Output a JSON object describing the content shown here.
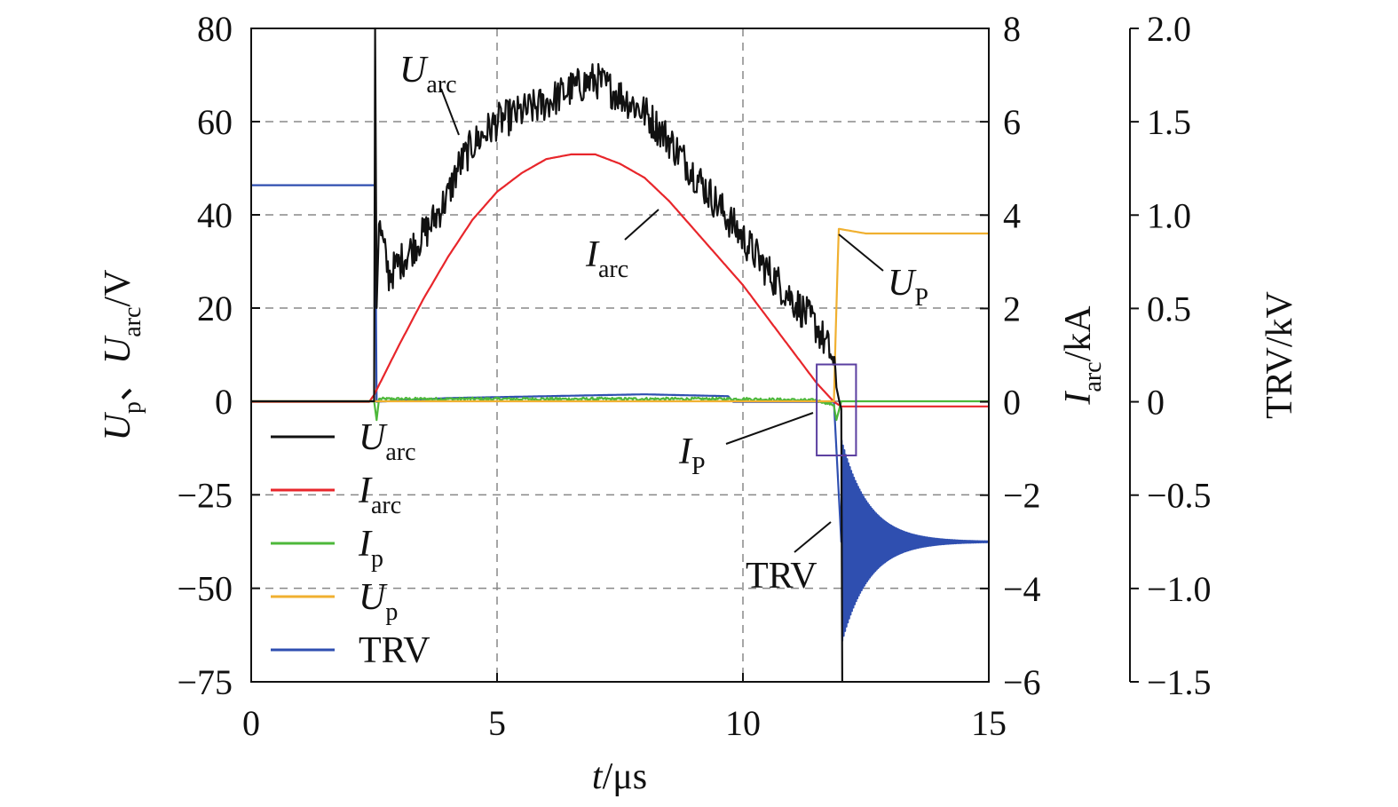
{
  "chart_data": {
    "type": "line",
    "xlabel": {
      "var": "t",
      "unit": "/μs"
    },
    "ylabel_left": {
      "part1": "U",
      "sub1": "p",
      "sep": "、",
      "part2": "U",
      "sub2": "arc",
      "unit": "/V"
    },
    "ylabel_mid": {
      "part": "I",
      "sub": "arc",
      "unit": "/kA"
    },
    "ylabel_right": "TRV/kV",
    "xlim": [
      0,
      15
    ],
    "xticks": [
      "0",
      "5",
      "10",
      "15"
    ],
    "y_left_ticks": [
      "80",
      "60",
      "40",
      "20",
      "0",
      "−25",
      "−50",
      "−75"
    ],
    "y_mid_ticks": [
      "8",
      "6",
      "4",
      "2",
      "0",
      "−2",
      "−4",
      "−6"
    ],
    "y_mid_range": [
      -6,
      8
    ],
    "y_right_ticks": [
      "2.0",
      "1.5",
      "1.0",
      "0.5",
      "0",
      "−0.5",
      "−1.0",
      "−1.5"
    ],
    "y_right_range": [
      -1.5,
      2.0
    ],
    "grid": "dashed, at x=5 and x=10 and at every left-axis tick",
    "legend": {
      "placement": "lower-left",
      "entries": [
        {
          "main": "U",
          "sub": "arc",
          "color": "#111111"
        },
        {
          "main": "I",
          "sub": "arc",
          "color": "#e8262b"
        },
        {
          "main": "I",
          "sub": "p",
          "color": "#4db83a"
        },
        {
          "main": "U",
          "sub": "p",
          "color": "#f0b030"
        },
        {
          "main": "TRV",
          "sub": "",
          "color": "#2f4fb0"
        }
      ]
    },
    "annotations": [
      {
        "main": "U",
        "sub": "arc"
      },
      {
        "main": "I",
        "sub": "arc"
      },
      {
        "main": "U",
        "sub": "P"
      },
      {
        "main": "I",
        "sub": "P"
      },
      {
        "main": "TRV",
        "sub": ""
      }
    ],
    "highlight_box": {
      "x_range": [
        11.5,
        12.3
      ],
      "iarc_range_kA": [
        -1.15,
        0.8
      ],
      "color": "#5b3fa0"
    },
    "series": [
      {
        "name": "Uarc",
        "color": "#111111",
        "axis": "left",
        "noise": 4,
        "x": [
          0,
          2.4,
          2.5,
          2.52,
          2.55,
          2.6,
          2.8,
          3.2,
          3.6,
          4.0,
          4.2,
          4.5,
          5.0,
          5.5,
          6.0,
          6.5,
          7.0,
          7.3,
          7.6,
          8.0,
          8.5,
          9.0,
          9.5,
          10.0,
          10.5,
          11.0,
          11.5,
          11.8,
          11.9,
          12.0,
          12.02
        ],
        "y": [
          0,
          0,
          0,
          80,
          20,
          38,
          27,
          32,
          37,
          44,
          50,
          55,
          60,
          62,
          64,
          67,
          69,
          67,
          65,
          62,
          56,
          49,
          42,
          35,
          28,
          22,
          16,
          10,
          3,
          -2,
          -75
        ]
      },
      {
        "name": "Iarc",
        "color": "#e8262b",
        "axis": "mid",
        "x": [
          0,
          2.4,
          2.5,
          3.0,
          3.5,
          4.0,
          4.5,
          5.0,
          5.5,
          6.0,
          6.5,
          7.0,
          7.5,
          8.0,
          8.5,
          9.0,
          9.5,
          10.0,
          10.5,
          11.0,
          11.5,
          11.85,
          12.0,
          13.0,
          15.0
        ],
        "y": [
          0,
          0,
          0.15,
          1.2,
          2.2,
          3.1,
          3.9,
          4.5,
          4.9,
          5.2,
          5.3,
          5.3,
          5.1,
          4.8,
          4.3,
          3.7,
          3.1,
          2.5,
          1.8,
          1.1,
          0.4,
          0.0,
          -0.1,
          -0.1,
          -0.1
        ]
      },
      {
        "name": "Ip",
        "color": "#4db83a",
        "axis": "left",
        "noise": 0.3,
        "x": [
          0,
          2.5,
          2.55,
          2.6,
          5.0,
          10.0,
          11.5,
          11.85,
          11.9,
          12.0,
          15.0
        ],
        "y": [
          0,
          0,
          -5,
          0.5,
          0.5,
          0.5,
          0.2,
          -1,
          -5,
          0,
          0
        ]
      },
      {
        "name": "Up",
        "color": "#f0b030",
        "axis": "left",
        "x": [
          0,
          11.85,
          11.9,
          11.95,
          12.5,
          15.0
        ],
        "y": [
          0,
          0,
          20,
          37,
          36,
          36
        ]
      },
      {
        "name": "TRV",
        "color": "#2f4fb0",
        "axis": "right",
        "x": [
          0,
          2.52,
          2.55,
          4.0,
          8.0,
          9.7,
          9.8,
          11.85
        ],
        "y": [
          1.16,
          1.16,
          0,
          0.02,
          0.04,
          0.03,
          0.0,
          0.0
        ],
        "ring": {
          "start": 12.0,
          "center": -0.75,
          "amplitude": 0.55,
          "period": 0.028,
          "decay": 0.55,
          "end": 15.0
        }
      }
    ]
  }
}
